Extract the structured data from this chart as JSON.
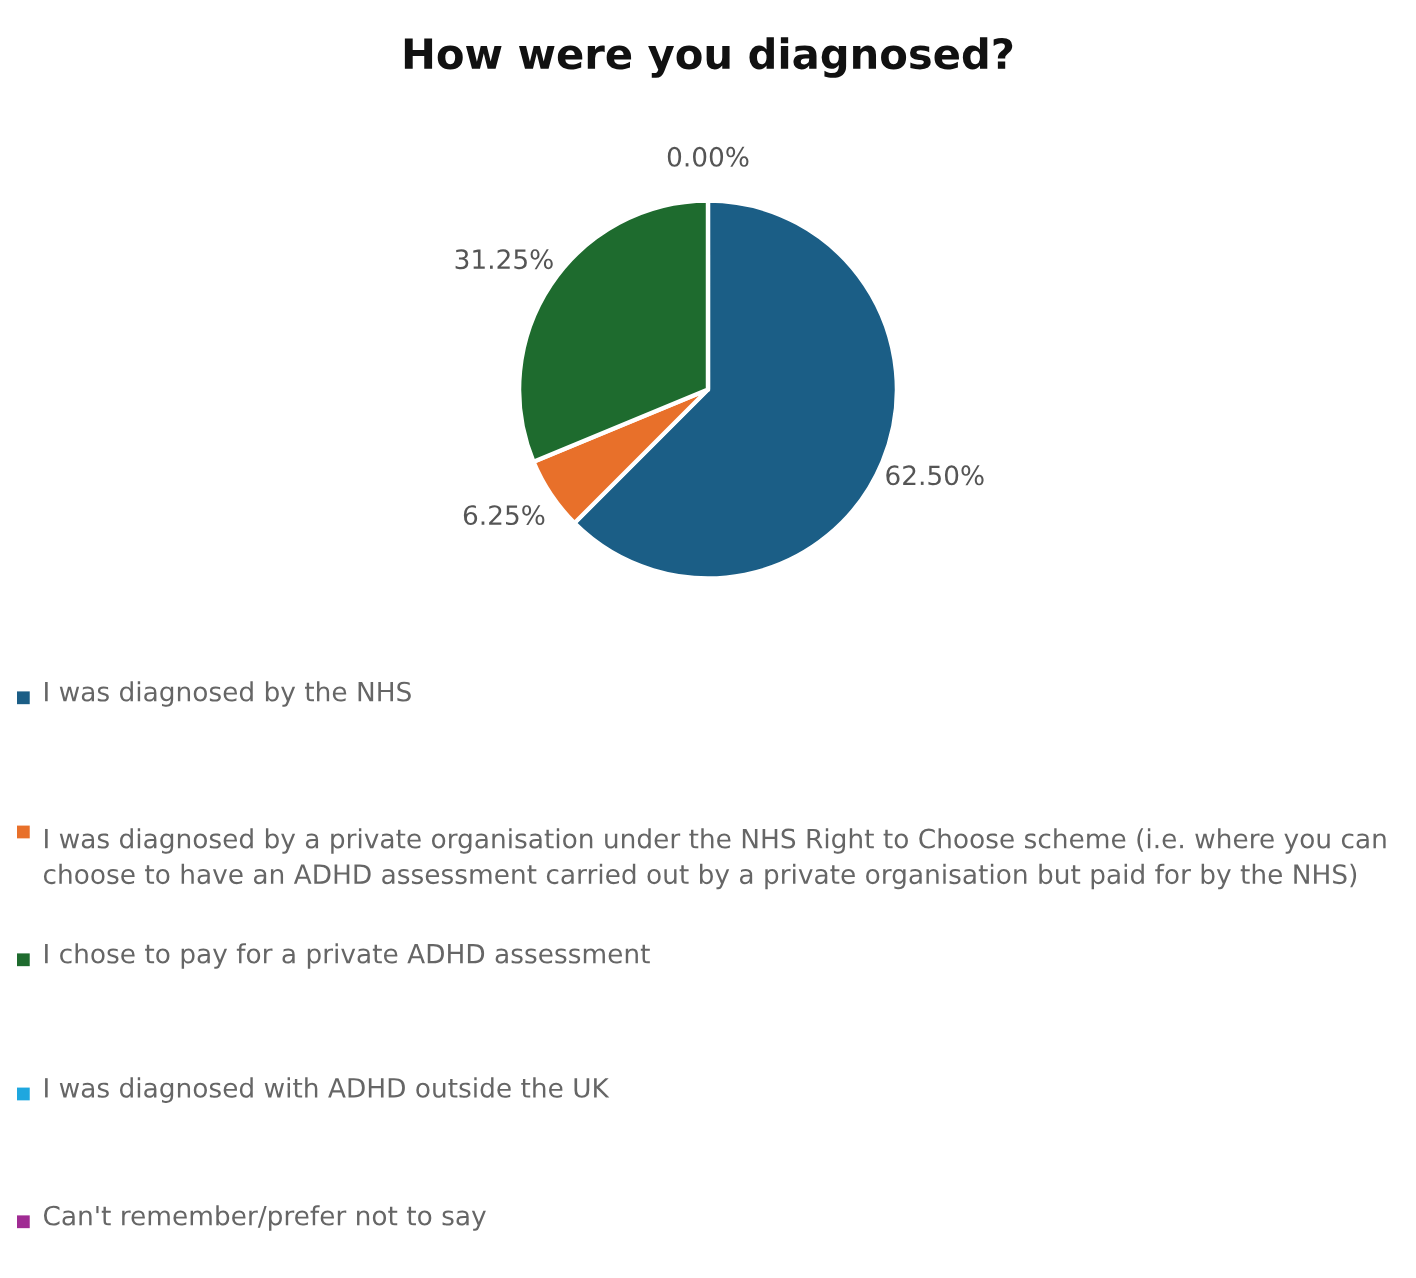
{
  "chart_data": {
    "type": "pie",
    "title": "How were you diagnosed?",
    "categories": [
      "I was diagnosed by the NHS",
      "I was diagnosed by a private organisation under the NHS Right to Choose scheme (i.e. where you can choose to have an ADHD assessment carried out by a private organisation but paid for by the NHS)",
      "I chose to pay for a private ADHD assessment",
      "I was diagnosed with ADHD outside the UK",
      "Can't remember/prefer not to say"
    ],
    "values": [
      62.5,
      6.25,
      31.25,
      0,
      0
    ],
    "colors": [
      "#1b5e86",
      "#e8702a",
      "#1e6b2e",
      "#1ea7df",
      "#a02b93"
    ],
    "value_labels": [
      "62.50%",
      "6.25%",
      "31.25%",
      "0.00%",
      null
    ],
    "legend": "bottom"
  }
}
